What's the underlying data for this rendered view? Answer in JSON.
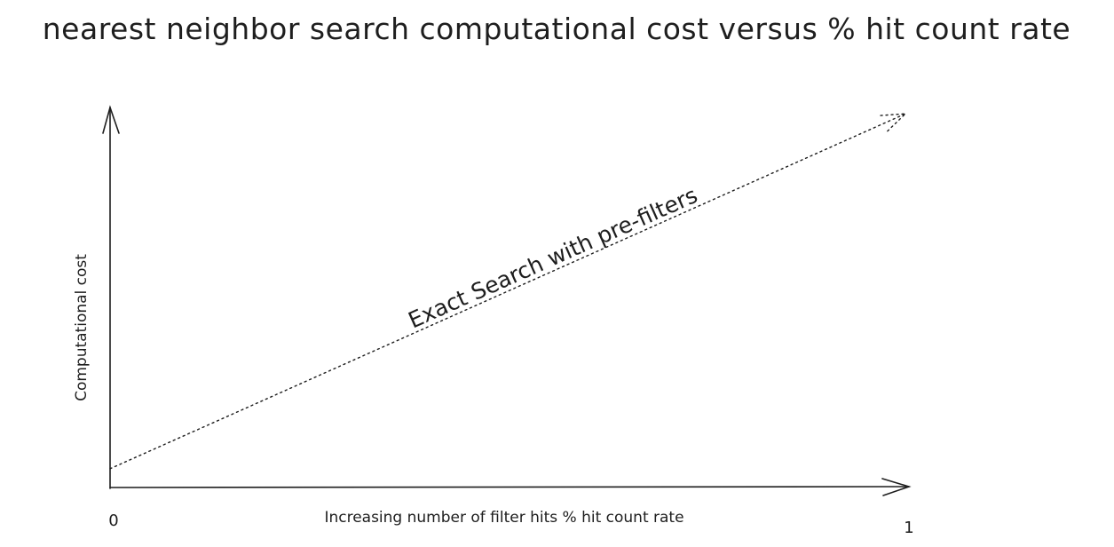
{
  "chart_data": {
    "type": "line",
    "title": "nearest neighbor search computational cost versus % hit count rate",
    "xlabel": "Increasing number of filter hits % hit count rate",
    "ylabel": "Computational cost",
    "x_tick_labels": [
      "0",
      "1"
    ],
    "xlim": [
      0,
      1
    ],
    "ylim": [
      0,
      1
    ],
    "grid": false,
    "line_style": "dotted",
    "series": [
      {
        "name": "Exact Search with pre-filters",
        "x": [
          0,
          1
        ],
        "y": [
          0.05,
          0.995
        ]
      }
    ],
    "colors": {
      "ink": "#1e1e1e",
      "background": "#ffffff"
    }
  }
}
